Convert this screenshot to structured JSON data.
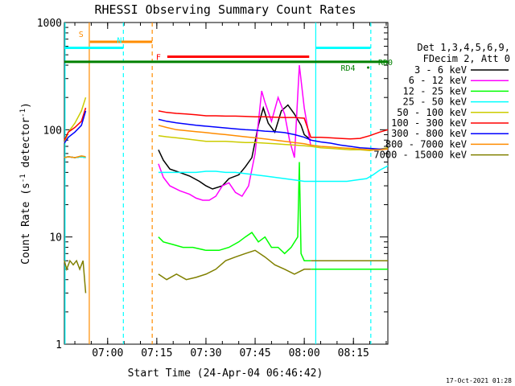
{
  "chart_data": {
    "type": "line",
    "title": "RHESSI Observing Summary Count Rates",
    "xlabel": "Start Time (24-Apr-04 06:46:42)",
    "ylabel_main": "Count Rate (s",
    "ylabel_sup1": "-1",
    "ylabel_mid": " detector",
    "ylabel_sup2": "-1",
    "ylabel_end": ")",
    "yscale": "log",
    "ylim": [
      1,
      1000
    ],
    "xlim_minutes": [
      6.8,
      105.5
    ],
    "x_ticks": [
      {
        "minutes": 20,
        "label": "07:00"
      },
      {
        "minutes": 35,
        "label": "07:15"
      },
      {
        "minutes": 50,
        "label": "07:30"
      },
      {
        "minutes": 65,
        "label": "07:45"
      },
      {
        "minutes": 80,
        "label": "08:00"
      },
      {
        "minutes": 95,
        "label": "08:15"
      }
    ],
    "y_ticks": [
      {
        "value": 1,
        "label": "1"
      },
      {
        "value": 10,
        "label": "10"
      },
      {
        "value": 100,
        "label": "100"
      },
      {
        "value": 1000,
        "label": "1000"
      }
    ],
    "legend_header": [
      "Det 1,3,4,5,6,9,",
      "FDecim 2, Att 0"
    ],
    "legend_placement": "right",
    "timestamp": "17-Oct-2021 01:28",
    "series": [
      {
        "name": "3 - 6 keV",
        "color": "#000000",
        "segments": [
          {
            "x": [
              6.8,
              8,
              10,
              12,
              13.3
            ],
            "y": [
              55,
              56,
              55,
              56,
              55
            ]
          },
          {
            "x": [
              35.5,
              37,
              39,
              42,
              45,
              48,
              50,
              52,
              55,
              57,
              60,
              62,
              64,
              66,
              67.5,
              69,
              71,
              73,
              75,
              77,
              79,
              80,
              81,
              82
            ],
            "y": [
              65,
              52,
              43,
              40,
              37,
              33,
              30,
              28,
              30,
              35,
              38,
              45,
              55,
              110,
              160,
              115,
              95,
              150,
              170,
              140,
              110,
              90,
              85,
              80
            ]
          }
        ]
      },
      {
        "name": "6 - 12 keV",
        "color": "#ff00ff",
        "segments": [
          {
            "x": [
              6.8,
              8,
              10,
              12,
              13.3
            ],
            "y": [
              55,
              56,
              55,
              56,
              55
            ]
          },
          {
            "x": [
              35.5,
              37,
              39,
              42,
              45,
              47,
              49,
              51,
              53,
              55,
              57,
              59,
              61,
              63,
              65,
              67,
              68,
              70,
              72,
              74,
              75.5,
              77,
              78.5,
              80,
              82
            ],
            "y": [
              48,
              36,
              30,
              27,
              25,
              23,
              22,
              22,
              24,
              30,
              32,
              26,
              24,
              30,
              60,
              230,
              180,
              120,
              200,
              140,
              80,
              55,
              400,
              160,
              70
            ]
          }
        ]
      },
      {
        "name": "12 - 25 keV",
        "color": "#00ff00",
        "segments": [
          {
            "x": [
              6.8,
              8,
              10,
              12,
              13.3
            ],
            "y": [
              55,
              56,
              55,
              56,
              55
            ]
          },
          {
            "x": [
              35.5,
              37,
              40,
              43,
              46,
              50,
              54,
              57,
              60,
              62,
              64,
              66,
              68,
              70,
              72,
              74,
              76,
              78,
              78.5,
              79,
              80,
              82
            ],
            "y": [
              10,
              9,
              8.5,
              8,
              8,
              7.5,
              7.5,
              8,
              9,
              10,
              11,
              9,
              10,
              8,
              8,
              7,
              8,
              10,
              50,
              7,
              6,
              6
            ]
          },
          {
            "x": [
              82,
              84,
              87,
              90,
              93,
              96,
              99,
              101,
              102,
              103,
              105.5
            ],
            "y": [
              5,
              5,
              5,
              5,
              5,
              5,
              5,
              5,
              5,
              5,
              5
            ]
          }
        ]
      },
      {
        "name": "25 - 50 keV",
        "color": "#00ffff",
        "segments": [
          {
            "x": [
              6.8,
              8,
              10,
              12,
              13.3
            ],
            "y": [
              55,
              56,
              55,
              56,
              55
            ]
          },
          {
            "x": [
              35.5,
              38,
              41,
              44,
              47,
              50,
              53,
              56,
              59,
              62,
              65,
              68,
              71,
              74,
              77,
              80,
              82,
              84,
              87,
              90,
              93,
              96,
              99,
              101,
              103,
              105.5
            ],
            "y": [
              40,
              40,
              40,
              40,
              40,
              41,
              41,
              40,
              40,
              39,
              38,
              37,
              36,
              35,
              34,
              33,
              33,
              33,
              33,
              33,
              33,
              34,
              35,
              38,
              42,
              46
            ]
          }
        ]
      },
      {
        "name": "50 - 100 keV",
        "color": "#cccc00",
        "segments": [
          {
            "x": [
              6.8,
              8,
              10,
              12,
              13.3
            ],
            "y": [
              75,
              95,
              115,
              150,
              200
            ]
          },
          {
            "x": [
              35.5,
              38,
              41,
              44,
              47,
              50,
              53,
              56,
              59,
              62,
              65,
              68,
              71,
              74,
              77,
              80,
              82,
              85,
              88,
              91,
              94,
              97,
              100,
              103,
              105.5
            ],
            "y": [
              88,
              86,
              84,
              82,
              80,
              78,
              78,
              78,
              77,
              76,
              76,
              75,
              74,
              73,
              72,
              71,
              70,
              68,
              67,
              66,
              65,
              65,
              64,
              66,
              68
            ]
          }
        ]
      },
      {
        "name": "100 - 300 keV",
        "color": "#ff0000",
        "segments": [
          {
            "x": [
              6.8,
              8,
              10,
              12,
              13.3
            ],
            "y": [
              80,
              95,
              105,
              120,
              160
            ]
          },
          {
            "x": [
              35.5,
              38,
              41,
              44,
              47,
              50,
              53,
              56,
              59,
              62,
              65,
              68,
              71,
              74,
              77,
              80,
              82,
              85,
              88,
              91,
              94,
              97,
              100,
              103,
              105.5
            ],
            "y": [
              150,
              145,
              142,
              140,
              138,
              135,
              135,
              134,
              134,
              133,
              132,
              132,
              131,
              130,
              130,
              128,
              85,
              85,
              84,
              83,
              82,
              83,
              88,
              95,
              100
            ]
          }
        ]
      },
      {
        "name": "300 - 800 keV",
        "color": "#0000ff",
        "segments": [
          {
            "x": [
              6.8,
              8,
              10,
              12,
              13.3
            ],
            "y": [
              75,
              85,
              95,
              110,
              150
            ]
          },
          {
            "x": [
              35.5,
              38,
              41,
              44,
              47,
              50,
              53,
              56,
              59,
              62,
              65,
              68,
              71,
              74,
              77,
              80,
              82,
              85,
              88,
              91,
              94,
              97,
              100,
              103,
              105.5
            ],
            "y": [
              125,
              120,
              116,
              113,
              110,
              108,
              106,
              104,
              102,
              100,
              99,
              97,
              96,
              94,
              90,
              85,
              80,
              77,
              75,
              72,
              70,
              68,
              67,
              66,
              66
            ]
          }
        ]
      },
      {
        "name": "800 - 7000 keV",
        "color": "#ff8c00",
        "segments": [
          {
            "x": [
              6.8,
              8,
              10,
              12,
              13.3
            ],
            "y": [
              55,
              56,
              55,
              57,
              56
            ]
          },
          {
            "x": [
              35.5,
              38,
              41,
              44,
              47,
              50,
              53,
              56,
              59,
              62,
              65,
              68,
              71,
              74,
              77,
              80,
              82,
              85,
              88,
              91,
              94,
              97,
              100,
              103,
              105.5
            ],
            "y": [
              110,
              105,
              100,
              98,
              96,
              94,
              92,
              90,
              88,
              86,
              84,
              82,
              80,
              78,
              76,
              74,
              72,
              70,
              69,
              68,
              67,
              66,
              65,
              65,
              66
            ]
          }
        ]
      },
      {
        "name": "7000 - 15000 keV",
        "color": "#808000",
        "segments": [
          {
            "x": [
              6.8,
              7.5,
              8.5,
              9.5,
              10.5,
              11.5,
              12.5,
              13.3
            ],
            "y": [
              6,
              5,
              6,
              5.5,
              6,
              5,
              6,
              3
            ]
          },
          {
            "x": [
              35.5,
              38,
              41,
              44,
              47,
              50,
              53,
              56,
              59,
              62,
              65,
              68,
              71,
              74,
              77,
              80,
              82
            ],
            "y": [
              4.5,
              4,
              4.5,
              4,
              4.2,
              4.5,
              5,
              6,
              6.5,
              7,
              7.5,
              6.5,
              5.5,
              5,
              4.5,
              5,
              5
            ]
          },
          {
            "x": [
              82,
              85,
              88,
              91,
              94,
              97,
              100,
              103,
              105.5
            ],
            "y": [
              6,
              6,
              6,
              6,
              6,
              6,
              6,
              6,
              6
            ]
          }
        ]
      }
    ],
    "flag_bars": [
      {
        "label": "S",
        "color": "#ff8c00",
        "x_start": 14.6,
        "x_end": 33.6,
        "y": 660
      },
      {
        "label": "N",
        "color": "#00ffff",
        "x_start": 6.8,
        "x_end": 24.8,
        "y": 580
      },
      {
        "label": "F",
        "color": "#ff0000",
        "x_start": 38.2,
        "x_end": 81.5,
        "y": 480
      },
      {
        "label": "",
        "color": "#00ffff",
        "x_start": 83.4,
        "x_end": 100.2,
        "y": 580
      },
      {
        "label": "RD0",
        "color": "#008000",
        "x_start": 6.8,
        "x_end": 105.5,
        "y": 430
      }
    ],
    "rd4": {
      "label": "RD4",
      "color": "#008000",
      "x": 99,
      "y": 380
    },
    "vertical_lines": [
      {
        "x": 7.0,
        "color": "#00ffff",
        "dashed": false
      },
      {
        "x": 14.4,
        "color": "#ff8c00",
        "dashed": false
      },
      {
        "x": 24.8,
        "color": "#00ffff",
        "dashed": true
      },
      {
        "x": 33.6,
        "color": "#ff8c00",
        "dashed": true
      },
      {
        "x": 83.5,
        "color": "#00ffff",
        "dashed": false
      },
      {
        "x": 100.3,
        "color": "#00ffff",
        "dashed": true
      }
    ]
  }
}
